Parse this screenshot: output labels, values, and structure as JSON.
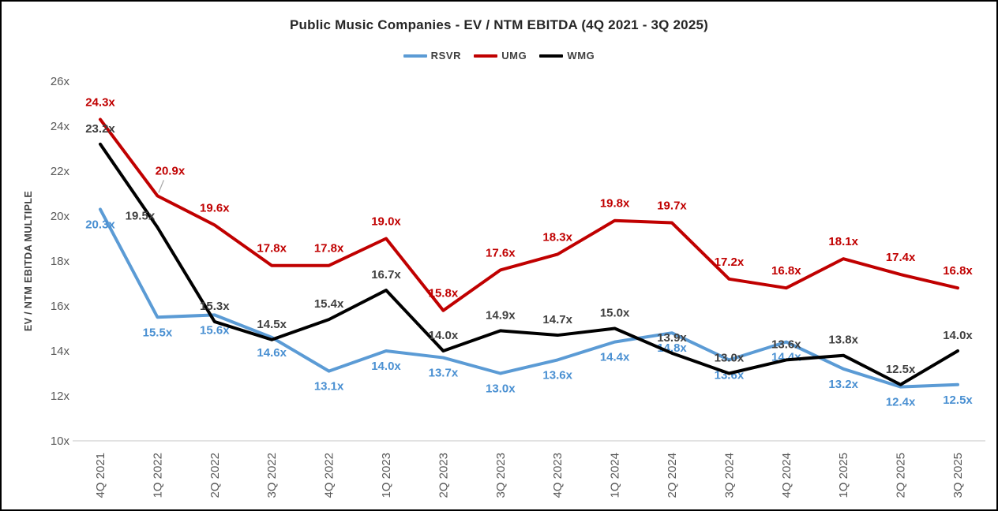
{
  "chart_data": {
    "type": "line",
    "title": "Public Music Companies - EV / NTM EBITDA (4Q 2021 - 3Q 2025)",
    "xlabel": "",
    "ylabel": "EV / NTM EBITDA MULTIPLE",
    "ylim": [
      10,
      26
    ],
    "ytick_step": 2,
    "ytick_labels": [
      "10x",
      "12x",
      "14x",
      "16x",
      "18x",
      "20x",
      "22x",
      "24x",
      "26x"
    ],
    "grid": false,
    "legend_position": "top-center",
    "label_suffix": "x",
    "data_labels": true,
    "categories": [
      "4Q 2021",
      "1Q 2022",
      "2Q 2022",
      "3Q 2022",
      "4Q 2022",
      "1Q 2023",
      "2Q 2023",
      "3Q 2023",
      "4Q 2023",
      "1Q 2024",
      "2Q 2024",
      "3Q 2024",
      "4Q 2024",
      "1Q 2025",
      "2Q 2025",
      "3Q 2025"
    ],
    "series": [
      {
        "name": "RSVR",
        "color": "#5B9BD5",
        "label_color": "#4A90D2",
        "values": [
          20.3,
          15.5,
          15.6,
          14.6,
          13.1,
          14.0,
          13.7,
          13.0,
          13.6,
          14.4,
          14.8,
          13.6,
          14.4,
          13.2,
          12.4,
          12.5
        ]
      },
      {
        "name": "UMG",
        "color": "#C00000",
        "label_color": "#C00000",
        "values": [
          24.3,
          20.9,
          19.6,
          17.8,
          17.8,
          19.0,
          15.8,
          17.6,
          18.3,
          19.8,
          19.7,
          17.2,
          16.8,
          18.1,
          17.4,
          16.8
        ]
      },
      {
        "name": "WMG",
        "color": "#000000",
        "label_color": "#404040",
        "values": [
          23.2,
          19.5,
          15.3,
          14.5,
          15.4,
          16.7,
          14.0,
          14.9,
          14.7,
          15.0,
          13.9,
          13.0,
          13.6,
          13.8,
          12.5,
          14.0
        ]
      }
    ],
    "annotations": [
      {
        "type": "leader-line",
        "series": "UMG",
        "index": 1,
        "label": "20.9x"
      }
    ]
  }
}
